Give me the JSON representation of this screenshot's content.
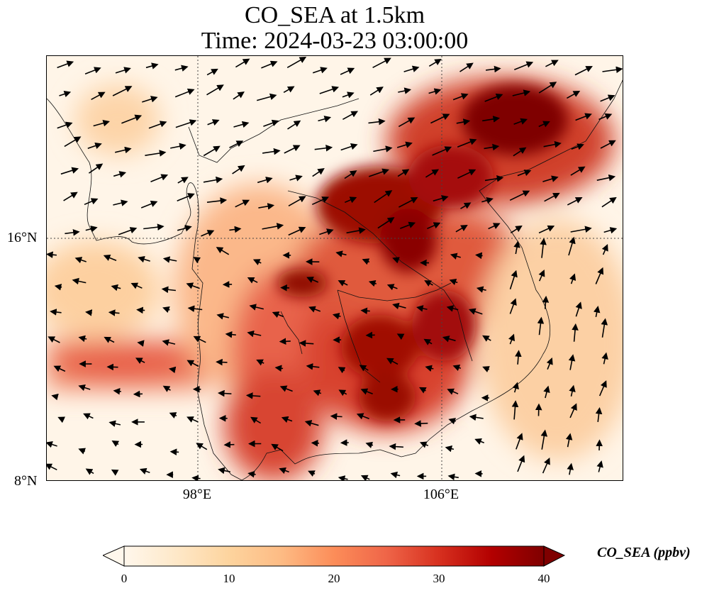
{
  "title": {
    "line1": "CO_SEA at 1.5km",
    "line2": "Time: 2024-03-23 03:00:00"
  },
  "axes": {
    "lat_ticks": [
      "16°N",
      "8°N"
    ],
    "lon_ticks": [
      "98°E",
      "106°E"
    ],
    "gridlines": "dotted"
  },
  "colorbar": {
    "label": "CO_SEA (ppbv)",
    "ticks": [
      "0",
      "10",
      "20",
      "30",
      "40"
    ],
    "min": 0,
    "max": 40,
    "extend": "both",
    "cmap": [
      "#fff7ec",
      "#fee8c8",
      "#fdd49e",
      "#fdbb84",
      "#fc8d59",
      "#ef6548",
      "#d7301f",
      "#b30000",
      "#7f0000"
    ]
  },
  "map": {
    "variable": "CO_SEA",
    "level": "1.5km",
    "lat_range": [
      8,
      22
    ],
    "lon_range": [
      93,
      112
    ],
    "features": [
      "coastlines",
      "country borders",
      "wind vectors"
    ]
  }
}
